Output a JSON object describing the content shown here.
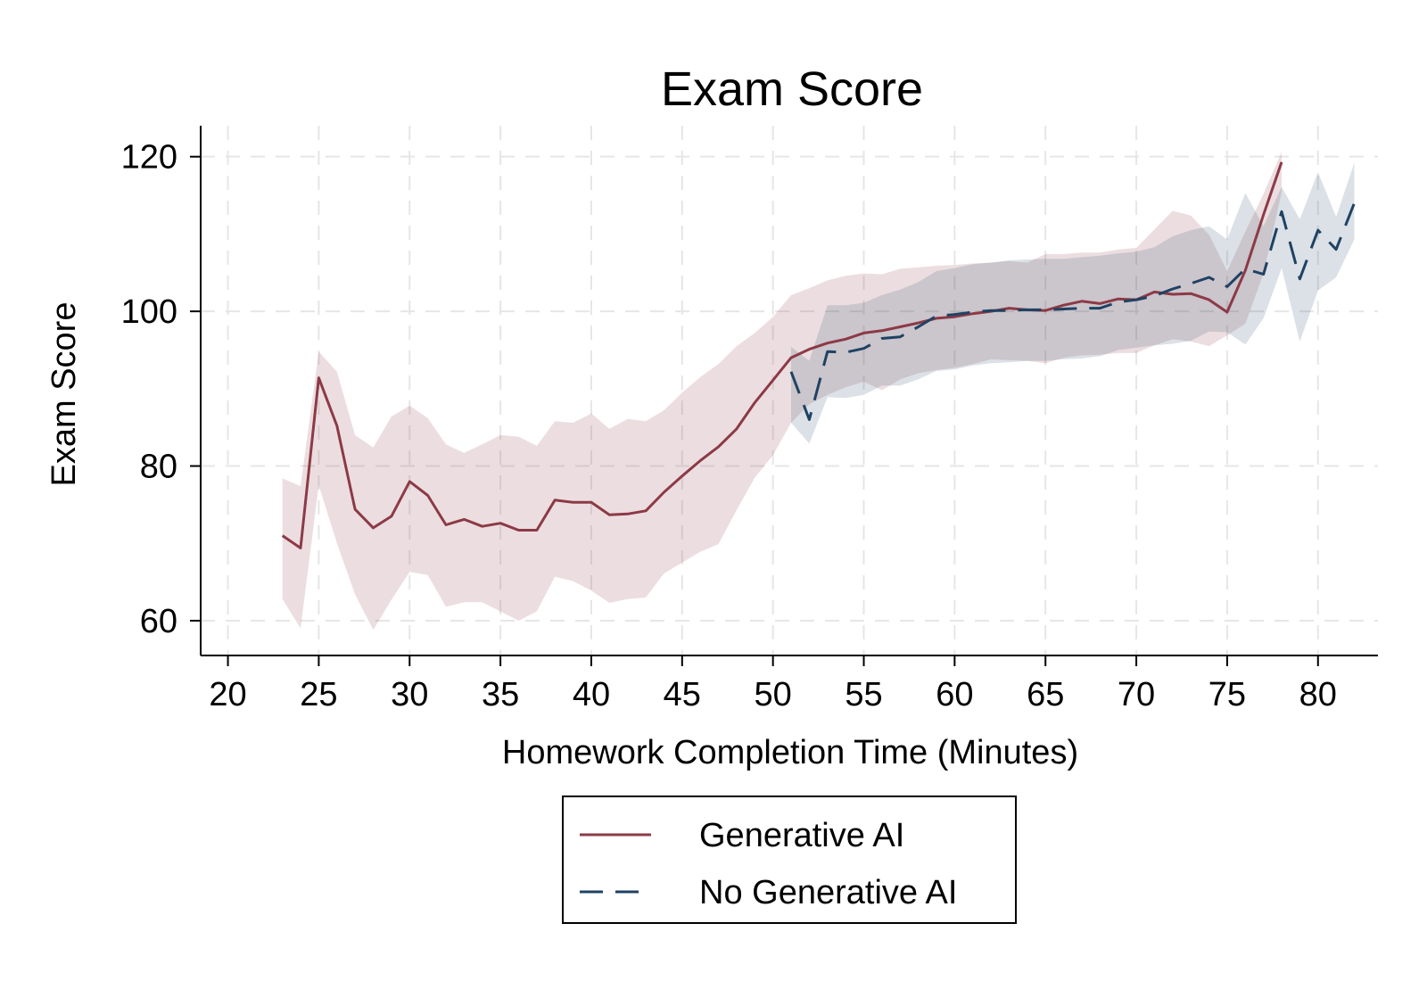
{
  "chart_data": {
    "type": "line",
    "title": "Exam Score",
    "xlabel": "Homework Completion Time (Minutes)",
    "ylabel": "Exam Score",
    "xlim": [
      18.5,
      83.3
    ],
    "ylim": [
      55.5,
      124
    ],
    "xticks": [
      20,
      25,
      30,
      35,
      40,
      45,
      50,
      55,
      60,
      65,
      70,
      75,
      80
    ],
    "yticks": [
      60,
      80,
      100,
      120
    ],
    "grid": true,
    "legend_position": "bottom-center",
    "series": [
      {
        "name": "Generative AI",
        "color": "#8c3a46",
        "style": "solid",
        "x": [
          23,
          24,
          25,
          26,
          27,
          28,
          29,
          30,
          31,
          32,
          33,
          34,
          35,
          36,
          37,
          38,
          39,
          40,
          41,
          42,
          43,
          44,
          45,
          46,
          47,
          48,
          49,
          50,
          51,
          52,
          53,
          54,
          55,
          56,
          57,
          58,
          59,
          60,
          61,
          62,
          63,
          64,
          65,
          66,
          67,
          68,
          69,
          70,
          71,
          72,
          73,
          74,
          75,
          76,
          77,
          78
        ],
        "y": [
          71.0,
          69.4,
          91.4,
          85.2,
          74.4,
          72.0,
          73.5,
          78.0,
          76.2,
          72.4,
          73.1,
          72.2,
          72.6,
          71.7,
          71.7,
          75.6,
          75.3,
          75.3,
          73.7,
          73.8,
          74.2,
          76.6,
          78.7,
          80.7,
          82.5,
          84.8,
          88.2,
          91.1,
          94.0,
          95.1,
          95.9,
          96.4,
          97.2,
          97.5,
          98.0,
          98.5,
          99.1,
          99.3,
          99.7,
          100.0,
          100.4,
          100.2,
          100.1,
          100.8,
          101.3,
          101.0,
          101.6,
          101.5,
          102.5,
          102.2,
          102.3,
          101.5,
          99.9,
          105.3,
          112.5,
          119.3
        ],
        "lower": [
          62.8,
          59.0,
          77.5,
          70.0,
          63.4,
          58.8,
          62.7,
          66.3,
          65.9,
          61.8,
          62.4,
          62.4,
          61.2,
          60.0,
          61.2,
          65.7,
          65.1,
          63.9,
          62.3,
          62.8,
          63.0,
          66.1,
          67.5,
          68.9,
          69.9,
          74.3,
          78.5,
          81.4,
          85.6,
          88.0,
          89.2,
          90.2,
          90.9,
          89.8,
          91.2,
          92.0,
          92.4,
          92.7,
          93.2,
          93.8,
          93.7,
          93.6,
          93.3,
          94.0,
          94.3,
          94.4,
          94.6,
          94.6,
          95.6,
          96.4,
          96.1,
          95.5,
          96.9,
          98.4,
          104.9,
          115.4
        ],
        "upper": [
          78.4,
          77.4,
          94.8,
          92.2,
          84.0,
          82.4,
          86.4,
          87.8,
          86.2,
          82.8,
          81.7,
          82.8,
          84.0,
          83.8,
          82.6,
          85.8,
          85.6,
          86.8,
          84.8,
          86.1,
          85.8,
          87.2,
          89.5,
          91.5,
          93.2,
          95.5,
          97.2,
          99.3,
          102.1,
          103.0,
          104.0,
          104.6,
          104.9,
          104.8,
          105.5,
          105.7,
          105.9,
          106.0,
          106.2,
          106.3,
          106.5,
          106.3,
          107.4,
          107.4,
          107.6,
          107.6,
          108.0,
          108.2,
          110.6,
          113.0,
          112.4,
          109.9,
          105.2,
          110.3,
          115.2,
          120.6
        ]
      },
      {
        "name": "No Generative AI",
        "color": "#1f4263",
        "style": "dashed",
        "x": [
          51,
          52,
          53,
          54,
          55,
          56,
          57,
          58,
          59,
          60,
          61,
          62,
          63,
          64,
          65,
          66,
          67,
          68,
          69,
          70,
          71,
          72,
          73,
          74,
          75,
          76,
          77,
          78,
          79,
          80,
          81,
          82
        ],
        "y": [
          92.2,
          86.0,
          94.8,
          94.7,
          95.2,
          96.5,
          96.7,
          98.0,
          99.4,
          99.6,
          99.9,
          100.1,
          100.1,
          100.2,
          100.2,
          100.3,
          100.4,
          100.4,
          101.2,
          101.5,
          102.0,
          102.9,
          103.6,
          104.4,
          103.2,
          105.5,
          104.8,
          112.9,
          104.2,
          110.5,
          108.0,
          114.0
        ],
        "lower": [
          85.6,
          82.9,
          88.9,
          88.8,
          89.2,
          90.4,
          90.4,
          91.2,
          92.3,
          92.5,
          93.0,
          93.3,
          93.4,
          93.6,
          93.6,
          93.8,
          93.9,
          94.2,
          95.0,
          95.3,
          95.6,
          95.8,
          96.2,
          97.4,
          97.3,
          95.7,
          99.1,
          105.6,
          96.1,
          102.7,
          104.4,
          109.3
        ],
        "upper": [
          95.4,
          93.6,
          100.8,
          100.8,
          101.1,
          102.1,
          102.8,
          103.8,
          105.2,
          105.6,
          106.1,
          106.3,
          106.6,
          106.7,
          106.8,
          106.8,
          107.0,
          107.2,
          107.5,
          107.7,
          108.3,
          109.7,
          110.5,
          111.0,
          109.3,
          115.3,
          111.0,
          116.1,
          111.9,
          118.0,
          112.2,
          119.2
        ]
      }
    ]
  }
}
